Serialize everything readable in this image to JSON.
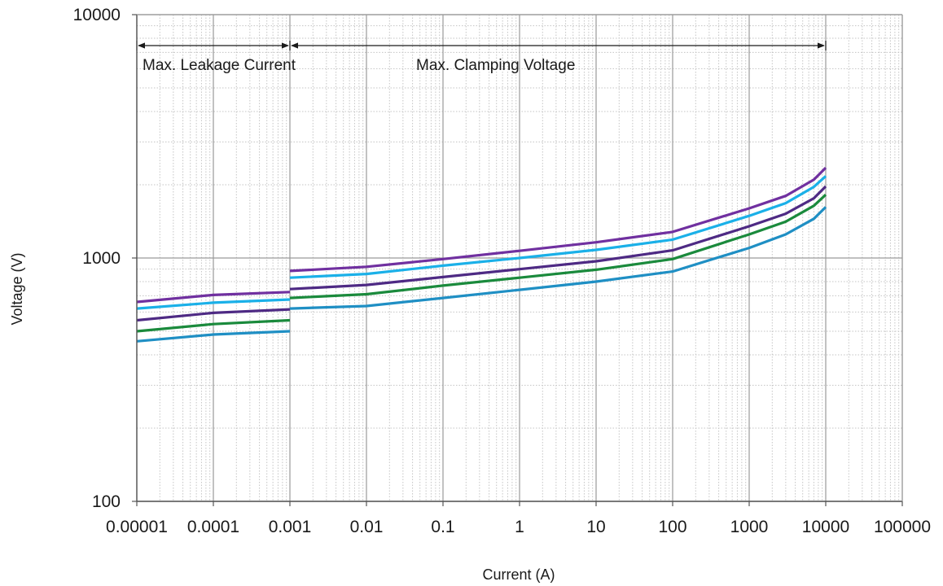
{
  "chart_data": {
    "type": "line",
    "title": "",
    "xlabel": "Current (A)",
    "ylabel": "Voltage (V)",
    "x_scale": "log",
    "y_scale": "log",
    "xlim": [
      1e-05,
      100000
    ],
    "ylim": [
      100,
      10000
    ],
    "grid": true,
    "x_tick_labels": [
      "0.00001",
      "0.0001",
      "0.001",
      "0.01",
      "0.1",
      "1",
      "10",
      "100",
      "1000",
      "10000",
      "100000"
    ],
    "y_tick_labels": [
      "100",
      "1000",
      "10000"
    ],
    "annotations": [
      {
        "text": "Max. Leakage Current",
        "x_range": [
          1e-05,
          0.001
        ]
      },
      {
        "text": "Max. Clamping Voltage",
        "x_range": [
          0.001,
          10000
        ]
      }
    ],
    "series": [
      {
        "color": "#7030a0",
        "segments": [
          [
            [
              1e-05,
              660
            ],
            [
              0.0001,
              705
            ],
            [
              0.001,
              725
            ]
          ],
          [
            [
              0.001,
              885
            ],
            [
              0.01,
              920
            ],
            [
              0.1,
              990
            ],
            [
              1,
              1070
            ],
            [
              10,
              1160
            ],
            [
              100,
              1280
            ],
            [
              1000,
              1600
            ],
            [
              3000,
              1800
            ],
            [
              7000,
              2100
            ],
            [
              10000,
              2350
            ]
          ]
        ]
      },
      {
        "color": "#1ab0e8",
        "segments": [
          [
            [
              1e-05,
              620
            ],
            [
              0.0001,
              655
            ],
            [
              0.001,
              675
            ]
          ],
          [
            [
              0.001,
              830
            ],
            [
              0.01,
              860
            ],
            [
              0.1,
              930
            ],
            [
              1,
              1000
            ],
            [
              10,
              1080
            ],
            [
              100,
              1190
            ],
            [
              1000,
              1490
            ],
            [
              3000,
              1680
            ],
            [
              7000,
              1960
            ],
            [
              10000,
              2170
            ]
          ]
        ]
      },
      {
        "color": "#4e2a84",
        "segments": [
          [
            [
              1e-05,
              555
            ],
            [
              0.0001,
              595
            ],
            [
              0.001,
              615
            ]
          ],
          [
            [
              0.001,
              745
            ],
            [
              0.01,
              775
            ],
            [
              0.1,
              835
            ],
            [
              1,
              900
            ],
            [
              10,
              970
            ],
            [
              100,
              1075
            ],
            [
              1000,
              1350
            ],
            [
              3000,
              1520
            ],
            [
              7000,
              1760
            ],
            [
              10000,
              1970
            ]
          ]
        ]
      },
      {
        "color": "#1a8a3c",
        "segments": [
          [
            [
              1e-05,
              500
            ],
            [
              0.0001,
              535
            ],
            [
              0.001,
              555
            ]
          ],
          [
            [
              0.001,
              685
            ],
            [
              0.01,
              710
            ],
            [
              0.1,
              770
            ],
            [
              1,
              830
            ],
            [
              10,
              895
            ],
            [
              100,
              990
            ],
            [
              1000,
              1250
            ],
            [
              3000,
              1410
            ],
            [
              7000,
              1640
            ],
            [
              10000,
              1820
            ]
          ]
        ]
      },
      {
        "color": "#1f8fc4",
        "segments": [
          [
            [
              1e-05,
              455
            ],
            [
              0.0001,
              485
            ],
            [
              0.001,
              500
            ]
          ],
          [
            [
              0.001,
              620
            ],
            [
              0.01,
              635
            ],
            [
              0.1,
              685
            ],
            [
              1,
              740
            ],
            [
              10,
              800
            ],
            [
              100,
              880
            ],
            [
              1000,
              1100
            ],
            [
              3000,
              1250
            ],
            [
              7000,
              1450
            ],
            [
              10000,
              1620
            ]
          ]
        ]
      }
    ]
  }
}
